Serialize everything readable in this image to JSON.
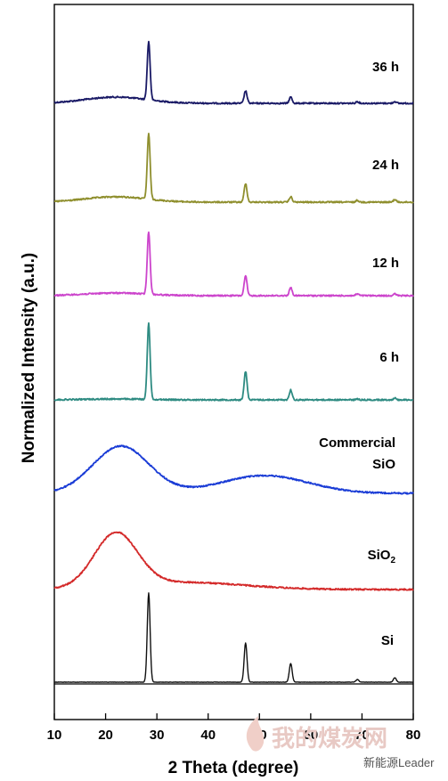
{
  "chart_data": {
    "type": "line",
    "xlabel": "2 Theta (degree)",
    "ylabel": "Normalized Intensity (a.u.)",
    "xlim": [
      10,
      80
    ],
    "xticks": [
      10,
      20,
      30,
      40,
      50,
      60,
      70,
      80
    ],
    "yticks_shown": false,
    "grid": false,
    "legend": "none",
    "series": [
      {
        "name": "36 h",
        "color": "#1a1a66",
        "broad_peaks": [
          {
            "center": 22,
            "height": 0.07,
            "width": 6
          }
        ],
        "sharp_peaks": [
          {
            "x": 28.4,
            "height": 0.65
          },
          {
            "x": 47.3,
            "height": 0.14
          },
          {
            "x": 56.1,
            "height": 0.07
          },
          {
            "x": 69.1,
            "height": 0.02
          },
          {
            "x": 76.4,
            "height": 0.02
          }
        ],
        "label_lines": [
          "36 h"
        ]
      },
      {
        "name": "24 h",
        "color": "#8f8f2e",
        "broad_peaks": [
          {
            "center": 22,
            "height": 0.06,
            "width": 6
          }
        ],
        "sharp_peaks": [
          {
            "x": 28.4,
            "height": 0.73
          },
          {
            "x": 47.3,
            "height": 0.21
          },
          {
            "x": 56.1,
            "height": 0.06
          },
          {
            "x": 69.1,
            "height": 0.02
          },
          {
            "x": 76.4,
            "height": 0.03
          }
        ],
        "label_lines": [
          "24 h"
        ]
      },
      {
        "name": "12 h",
        "color": "#cc44cc",
        "broad_peaks": [
          {
            "center": 22,
            "height": 0.03,
            "width": 6
          }
        ],
        "sharp_peaks": [
          {
            "x": 28.4,
            "height": 0.7
          },
          {
            "x": 47.3,
            "height": 0.22
          },
          {
            "x": 56.1,
            "height": 0.09
          },
          {
            "x": 69.1,
            "height": 0.02
          },
          {
            "x": 76.4,
            "height": 0.02
          }
        ],
        "label_lines": [
          "12 h"
        ]
      },
      {
        "name": "6 h",
        "color": "#2e8b82",
        "broad_peaks": [
          {
            "center": 22,
            "height": 0.01,
            "width": 6
          }
        ],
        "sharp_peaks": [
          {
            "x": 28.4,
            "height": 0.85
          },
          {
            "x": 47.3,
            "height": 0.32
          },
          {
            "x": 56.1,
            "height": 0.11
          },
          {
            "x": 69.1,
            "height": 0.01
          },
          {
            "x": 76.4,
            "height": 0.02
          }
        ],
        "label_lines": [
          "6 h"
        ]
      },
      {
        "name": "Commercial SiO",
        "color": "#1a3cd6",
        "broad_peaks": [
          {
            "center": 23,
            "height": 0.53,
            "width": 5.5
          },
          {
            "center": 51,
            "height": 0.2,
            "width": 8.5
          }
        ],
        "sharp_peaks": [],
        "label_lines": [
          "Commercial",
          "SiO"
        ]
      },
      {
        "name": "SiO2",
        "color": "#d42a2a",
        "broad_peaks": [
          {
            "center": 22,
            "height": 0.6,
            "width": 4.2
          },
          {
            "center": 35,
            "height": 0.08,
            "width": 12
          }
        ],
        "sharp_peaks": [],
        "label_lines": [
          "SiO",
          "2"
        ]
      },
      {
        "name": "Si",
        "color": "#111111",
        "broad_peaks": [],
        "sharp_peaks": [
          {
            "x": 28.4,
            "height": 1.0
          },
          {
            "x": 47.3,
            "height": 0.44
          },
          {
            "x": 56.1,
            "height": 0.21
          },
          {
            "x": 69.1,
            "height": 0.03
          },
          {
            "x": 76.4,
            "height": 0.05
          }
        ],
        "label_lines": [
          "Si"
        ]
      }
    ]
  },
  "watermark": {
    "main": "我的煤炭网",
    "sub": "新能源Leader"
  }
}
